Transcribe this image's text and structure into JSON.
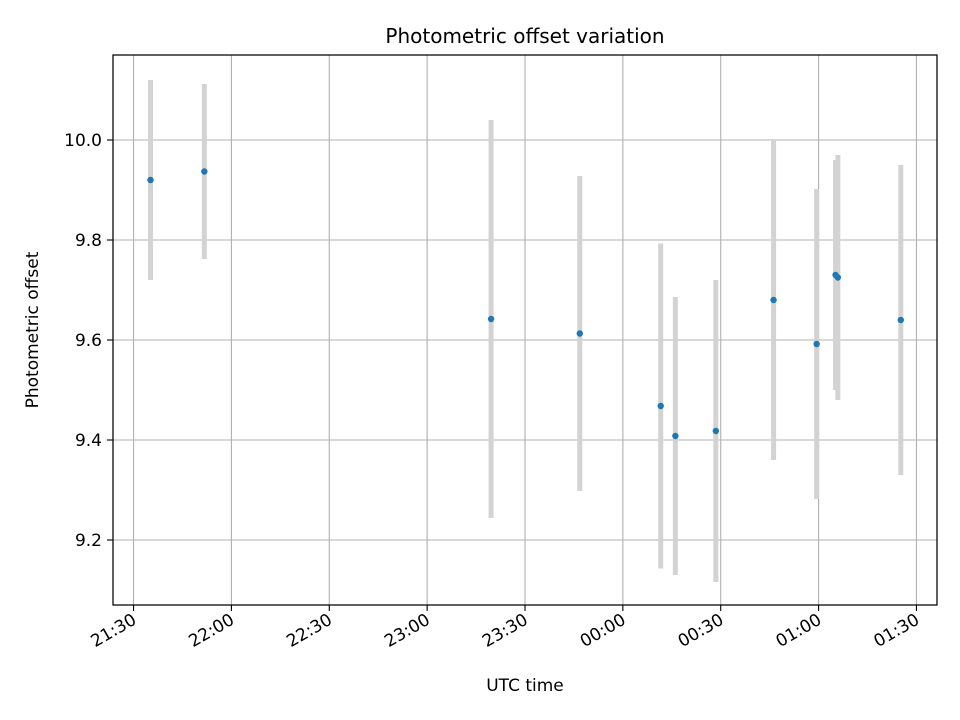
{
  "chart_data": {
    "type": "scatter",
    "title": "Photometric offset variation",
    "xlabel": "UTC time",
    "ylabel": "Photometric offset",
    "x_ticks": [
      "21:30",
      "22:00",
      "22:30",
      "23:00",
      "23:30",
      "00:00",
      "00:30",
      "01:00",
      "01:30"
    ],
    "y_ticks": [
      "9.2",
      "9.4",
      "9.6",
      "9.8",
      "10.0"
    ],
    "x_tick_minutes": [
      0,
      30,
      60,
      90,
      120,
      150,
      180,
      210,
      240
    ],
    "y_tick_values": [
      9.2,
      9.4,
      9.6,
      9.8,
      10.0
    ],
    "xlim_minutes": [
      -6.3,
      246.3
    ],
    "ylim": [
      9.07,
      10.17
    ],
    "grid": true,
    "colors": {
      "points": "#1f77b4",
      "errorbars": "#d3d3d3",
      "grid": "#b0b0b0"
    },
    "points": [
      {
        "t": "21:35",
        "t_minutes": 5.2,
        "y": 9.92,
        "yerr": 0.2
      },
      {
        "t": "21:52",
        "t_minutes": 21.7,
        "y": 9.937,
        "yerr": 0.175
      },
      {
        "t": "23:20",
        "t_minutes": 109.6,
        "y": 9.642,
        "yerr": 0.398
      },
      {
        "t": "23:47",
        "t_minutes": 136.8,
        "y": 9.613,
        "yerr": 0.315
      },
      {
        "t": "00:12",
        "t_minutes": 161.6,
        "y": 9.468,
        "yerr": 0.325
      },
      {
        "t": "00:16",
        "t_minutes": 166.1,
        "y": 9.408,
        "yerr": 0.278
      },
      {
        "t": "00:28",
        "t_minutes": 178.5,
        "y": 9.418,
        "yerr": 0.302
      },
      {
        "t": "00:46",
        "t_minutes": 196.2,
        "y": 9.68,
        "yerr": 0.32
      },
      {
        "t": "00:59",
        "t_minutes": 209.4,
        "y": 9.592,
        "yerr": 0.31
      },
      {
        "t": "01:05",
        "t_minutes": 215.2,
        "y": 9.73,
        "yerr": 0.23
      },
      {
        "t": "01:06",
        "t_minutes": 215.9,
        "y": 9.725,
        "yerr": 0.245
      },
      {
        "t": "01:25",
        "t_minutes": 235.2,
        "y": 9.64,
        "yerr": 0.31
      }
    ]
  }
}
